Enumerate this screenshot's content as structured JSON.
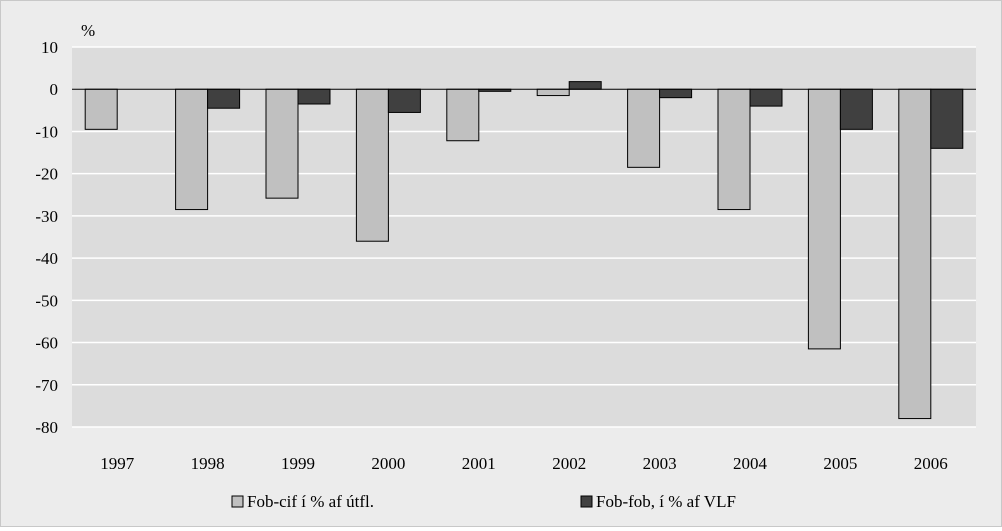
{
  "chart_data": {
    "type": "bar",
    "ylabel": "%",
    "ylim": [
      -80,
      10
    ],
    "y_ticks": [
      10,
      0,
      -10,
      -20,
      -30,
      -40,
      -50,
      -60,
      -70,
      -80
    ],
    "grid": true,
    "legend_position": "bottom",
    "categories": [
      "1997",
      "1998",
      "1999",
      "2000",
      "2001",
      "2002",
      "2003",
      "2004",
      "2005",
      "2006"
    ],
    "series": [
      {
        "name": "Fob-cif í % af útfl.",
        "color": "#c0c0c0",
        "values": [
          -9.5,
          -28.5,
          -25.8,
          -36.0,
          -12.2,
          -1.5,
          -18.5,
          -28.5,
          -61.5,
          -78.0
        ]
      },
      {
        "name": "Fob-fob, í % af VLF",
        "color": "#404040",
        "values": [
          0,
          -4.5,
          -3.5,
          -5.5,
          -0.5,
          1.8,
          -2.0,
          -4.0,
          -9.5,
          -14.0
        ]
      }
    ]
  }
}
